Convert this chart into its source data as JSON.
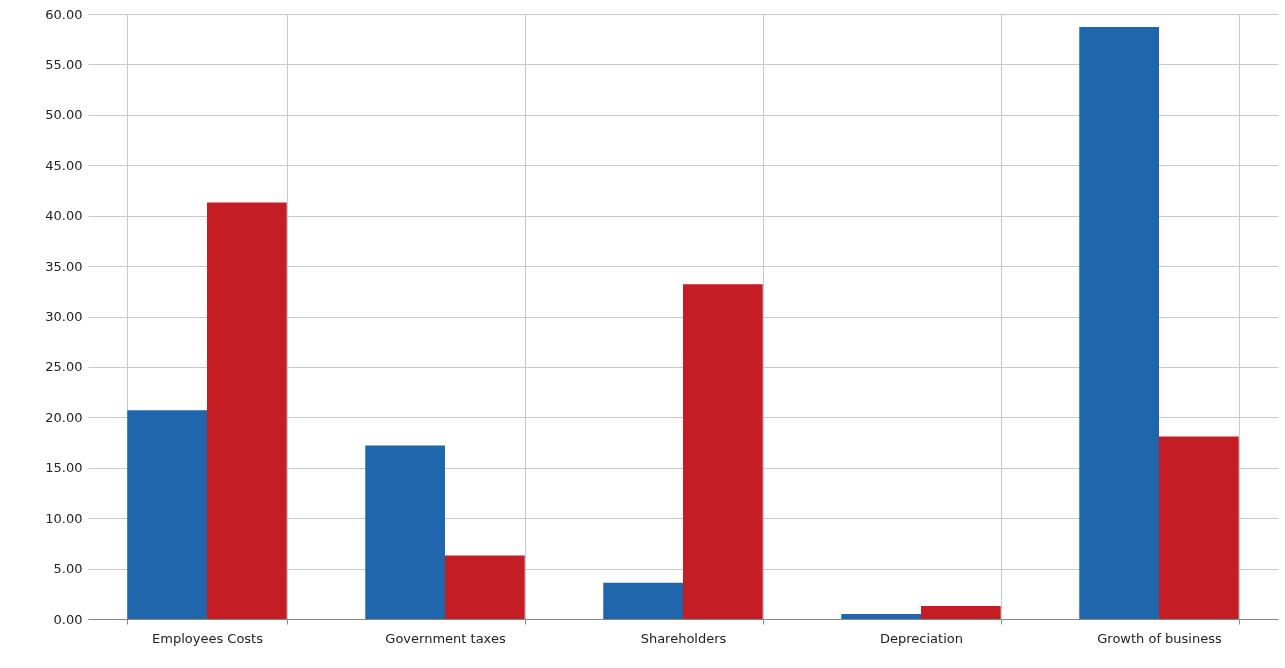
{
  "chart_data": {
    "type": "bar",
    "categories": [
      "Employees Costs",
      "Government taxes",
      "Shareholders",
      "Depreciation",
      "Growth of business"
    ],
    "series": [
      {
        "color": "#1f66ad",
        "values": [
          20.7,
          17.2,
          3.6,
          0.5,
          58.7
        ]
      },
      {
        "color": "#c41e24",
        "values": [
          41.3,
          6.3,
          33.2,
          1.3,
          18.1
        ]
      }
    ],
    "ylim": [
      0,
      60
    ],
    "yticks": [
      {
        "value": 0,
        "label": "0.00"
      },
      {
        "value": 5,
        "label": "5.00"
      },
      {
        "value": 10,
        "label": "10.00"
      },
      {
        "value": 15,
        "label": "15.00"
      },
      {
        "value": 20,
        "label": "20.00"
      },
      {
        "value": 25,
        "label": "25.00"
      },
      {
        "value": 30,
        "label": "30.00"
      },
      {
        "value": 35,
        "label": "35.00"
      },
      {
        "value": 40,
        "label": "40.00"
      },
      {
        "value": 45,
        "label": "45.00"
      },
      {
        "value": 50,
        "label": "50.00"
      },
      {
        "value": 55,
        "label": "55.00"
      },
      {
        "value": 60,
        "label": "60.00"
      }
    ],
    "grid": true
  }
}
